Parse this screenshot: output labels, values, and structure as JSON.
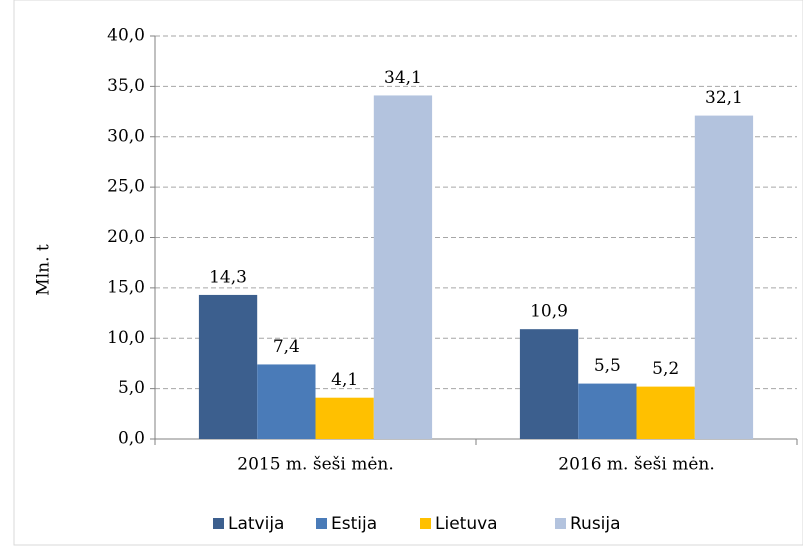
{
  "chart_data": {
    "type": "bar",
    "categories": [
      "2015 m. šeši mėn.",
      "2016 m. šeši mėn."
    ],
    "y_label": "Mln. t",
    "series": [
      {
        "name": "Latvija",
        "color": "#3c5f8e",
        "values": [
          14.3,
          10.9
        ],
        "value_labels": [
          "14,3",
          "10,9"
        ]
      },
      {
        "name": "Estija",
        "color": "#4a7bb8",
        "values": [
          7.4,
          5.5
        ],
        "value_labels": [
          "7,4",
          "5,5"
        ]
      },
      {
        "name": "Lietuva",
        "color": "#ffc000",
        "values": [
          4.1,
          5.2
        ],
        "value_labels": [
          "4,1",
          "5,2"
        ]
      },
      {
        "name": "Rusija",
        "color": "#b3c3de",
        "values": [
          34.1,
          32.1
        ],
        "value_labels": [
          "34,1",
          "32,1"
        ]
      }
    ],
    "ylim": [
      0,
      40
    ],
    "yticks": [
      {
        "value": 0,
        "label": "0,0"
      },
      {
        "value": 5,
        "label": "5,0"
      },
      {
        "value": 10,
        "label": "10,0"
      },
      {
        "value": 15,
        "label": "15,0"
      },
      {
        "value": 20,
        "label": "20,0"
      },
      {
        "value": 25,
        "label": "25,0"
      },
      {
        "value": 30,
        "label": "30,0"
      },
      {
        "value": 35,
        "label": "35,0"
      },
      {
        "value": 40,
        "label": "40,0"
      }
    ],
    "grid": true,
    "legend": "bottom"
  }
}
